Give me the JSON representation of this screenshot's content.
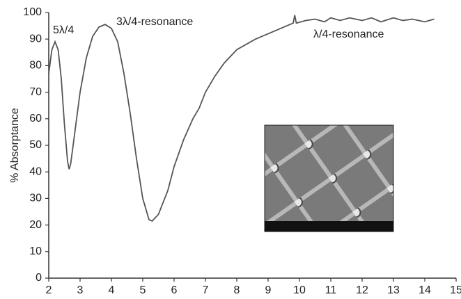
{
  "chart_data": {
    "type": "line",
    "ylabel": "% Absorptance",
    "annotations": [
      "5λ/4",
      "3λ/4-resonance",
      "λ/4-resonance"
    ],
    "x": [
      2.0,
      2.1,
      2.2,
      2.3,
      2.4,
      2.5,
      2.6,
      2.65,
      2.7,
      2.8,
      3.0,
      3.2,
      3.4,
      3.6,
      3.8,
      4.0,
      4.2,
      4.4,
      4.6,
      4.8,
      5.0,
      5.2,
      5.3,
      5.5,
      5.8,
      6.0,
      6.3,
      6.6,
      6.8,
      7.0,
      7.3,
      7.6,
      8.0,
      8.3,
      8.6,
      9.0,
      9.3,
      9.6,
      9.8,
      9.85,
      9.9,
      10.2,
      10.5,
      10.8,
      11.0,
      11.3,
      11.6,
      12.0,
      12.3,
      12.6,
      13.0,
      13.3,
      13.6,
      14.0,
      14.3
    ],
    "series": [
      {
        "color": "#555555",
        "values": [
          77,
          86,
          89,
          86,
          75,
          58,
          44,
          41,
          43,
          52,
          70,
          83,
          91,
          94.5,
          95.5,
          94,
          89,
          77,
          62,
          45,
          30,
          22,
          21.5,
          24,
          33,
          42,
          52,
          60,
          64,
          70,
          76,
          81,
          86,
          88,
          90,
          92,
          93.5,
          95,
          96,
          99,
          96,
          97,
          97.5,
          96.5,
          98,
          97,
          98,
          97,
          98,
          96.5,
          98,
          97,
          97.5,
          96.5,
          97.5
        ]
      }
    ],
    "xlim": [
      2,
      15
    ],
    "xticks": [
      2,
      3,
      4,
      5,
      6,
      7,
      8,
      9,
      10,
      11,
      12,
      13,
      14,
      15
    ],
    "ylim": [
      0,
      100
    ],
    "yticks": [
      0,
      10,
      20,
      30,
      40,
      50,
      60,
      70,
      80,
      90,
      100
    ]
  }
}
